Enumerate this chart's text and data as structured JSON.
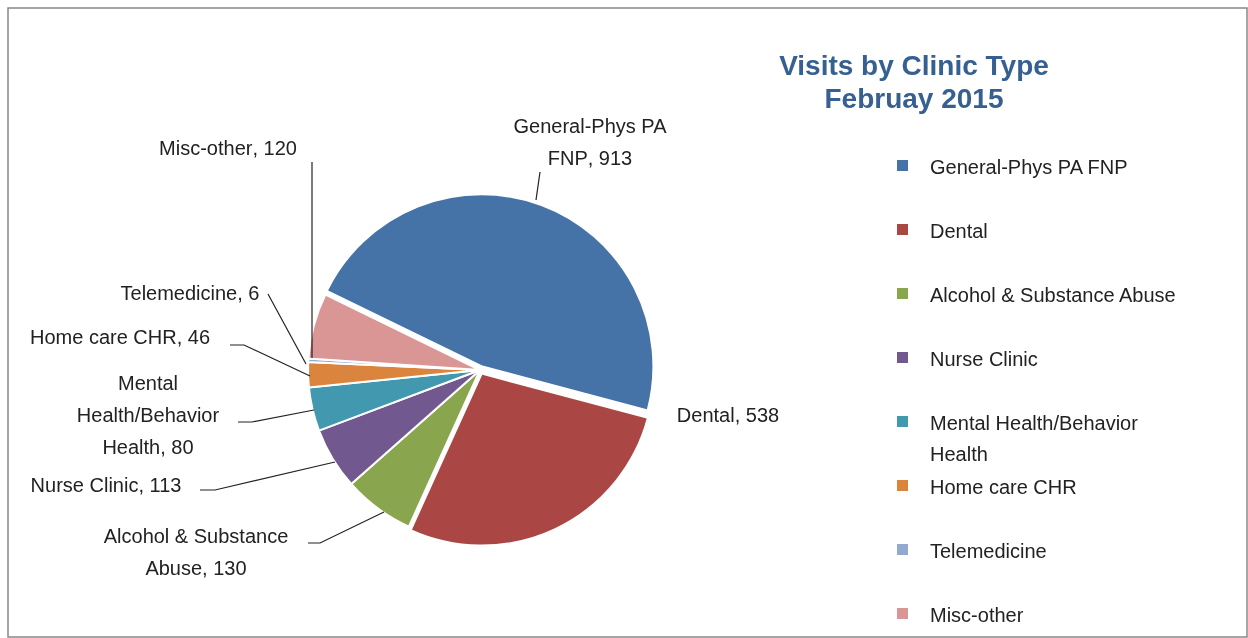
{
  "chart_data": {
    "type": "pie",
    "title": "Visits by Clinic Type\nFebruay 2015",
    "categories": [
      "General-Phys PA FNP",
      "Dental",
      "Alcohol & Substance Abuse",
      "Nurse Clinic",
      "Mental Health/Behavior Health",
      "Home care CHR",
      "Telemedicine",
      "Misc-other"
    ],
    "values": [
      913,
      538,
      130,
      113,
      80,
      46,
      6,
      120
    ],
    "colors": [
      "#4572a7",
      "#aa4643",
      "#89a54e",
      "#71588f",
      "#4198af",
      "#db843d",
      "#93a9cf",
      "#d99694"
    ],
    "value_labels": [
      ", 913",
      ", 538",
      ", 130",
      ", 113",
      ", 80",
      ", 46",
      ", 6",
      ", 120"
    ],
    "legend": "right"
  }
}
